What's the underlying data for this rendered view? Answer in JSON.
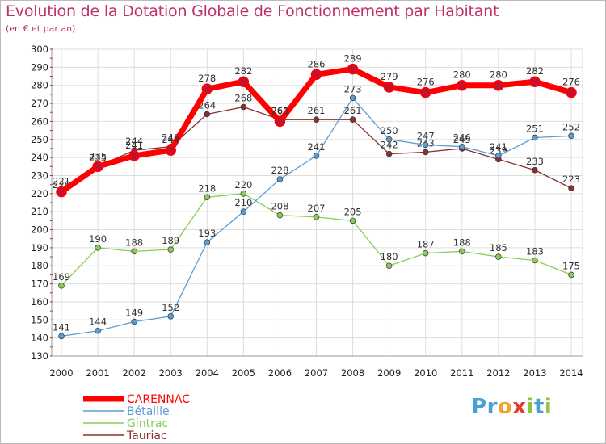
{
  "chart_data": {
    "type": "line",
    "title": "Evolution de la Dotation Globale de Fonctionnement par Habitant",
    "subtitle": "(en € et par an)",
    "x": [
      "2000",
      "2001",
      "2002",
      "2003",
      "2004",
      "2005",
      "2006",
      "2007",
      "2008",
      "2009",
      "2010",
      "2011",
      "2012",
      "2013",
      "2014"
    ],
    "ylim": [
      130,
      300
    ],
    "ytick_step": 10,
    "grid": true,
    "legend_position": "bottom-left",
    "series": [
      {
        "name": "Tauriac",
        "color": "#8b2f2f",
        "values": [
          220,
          235,
          244,
          246,
          264,
          268,
          261,
          261,
          261,
          242,
          243,
          245,
          239,
          233,
          223
        ]
      },
      {
        "name": "Gintrac",
        "color": "#88cc55",
        "values": [
          169,
          190,
          188,
          189,
          218,
          220,
          208,
          207,
          205,
          180,
          187,
          188,
          185,
          183,
          175
        ]
      },
      {
        "name": "Bétaille",
        "color": "#5a9ed3",
        "values": [
          141,
          144,
          149,
          152,
          193,
          210,
          228,
          241,
          273,
          250,
          247,
          246,
          241,
          251,
          252
        ]
      },
      {
        "name": "CARENNAC",
        "color": "#ff0000",
        "values": [
          221,
          235,
          241,
          244,
          278,
          282,
          260,
          286,
          289,
          279,
          276,
          280,
          280,
          282,
          276
        ]
      }
    ],
    "legend_order": [
      "CARENNAC",
      "Bétaille",
      "Gintrac",
      "Tauriac"
    ]
  },
  "logo": {
    "letters": [
      {
        "ch": "P",
        "color": "#4a9fd8"
      },
      {
        "ch": "r",
        "color": "#4a9fd8"
      },
      {
        "ch": "o",
        "color": "#f2a230"
      },
      {
        "ch": "x",
        "color": "#e23c2c"
      },
      {
        "ch": "i",
        "color": "#8cc63f"
      },
      {
        "ch": "t",
        "color": "#4a9fd8"
      },
      {
        "ch": "i",
        "color": "#8cc63f"
      }
    ]
  }
}
